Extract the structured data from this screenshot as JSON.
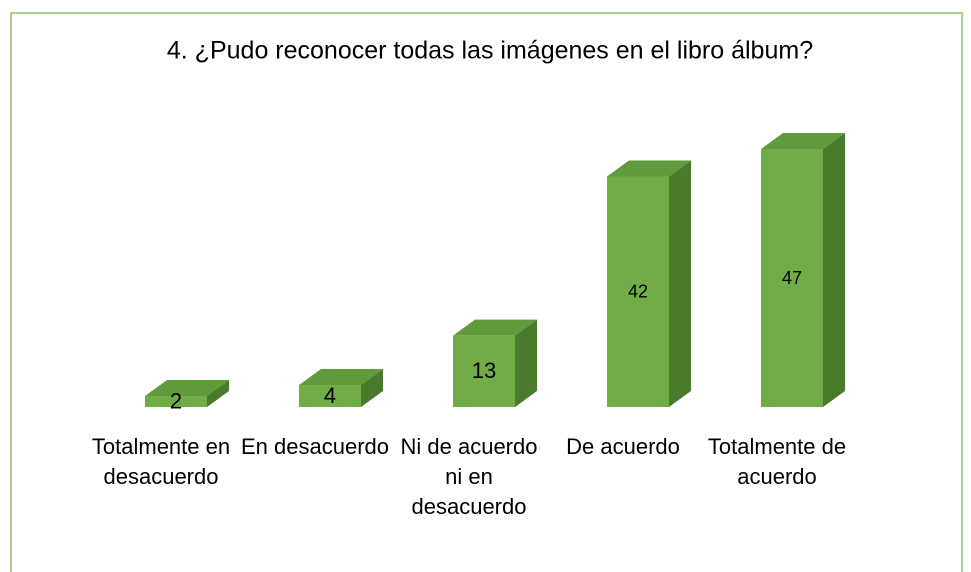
{
  "chart_data": {
    "type": "bar3d",
    "title": "4. ¿Pudo reconocer todas las imágenes en el libro álbum?",
    "categories": [
      "Totalmente en desacuerdo",
      "En desacuerdo",
      "Ni de acuerdo ni en desacuerdo",
      "De acuerdo",
      "Totalmente de acuerdo"
    ],
    "values": [
      2,
      4,
      13,
      42,
      47
    ],
    "color": "#70ad47"
  }
}
